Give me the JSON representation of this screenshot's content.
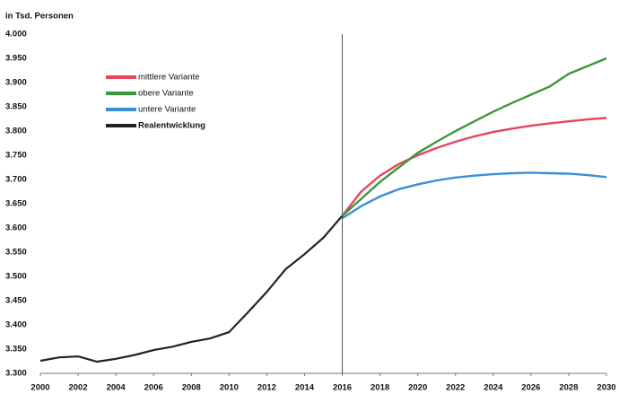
{
  "chart_data": {
    "type": "line",
    "y_label": "in Tsd. Personen",
    "x": [
      2000,
      2001,
      2002,
      2003,
      2004,
      2005,
      2006,
      2007,
      2008,
      2009,
      2010,
      2011,
      2012,
      2013,
      2014,
      2015,
      2016,
      2017,
      2018,
      2019,
      2020,
      2021,
      2022,
      2023,
      2024,
      2025,
      2026,
      2027,
      2028,
      2029,
      2030
    ],
    "series": [
      {
        "name": "mittlere Variante",
        "color": "#e8455e",
        "values": [
          null,
          null,
          null,
          null,
          null,
          null,
          null,
          null,
          null,
          null,
          null,
          null,
          null,
          null,
          null,
          null,
          3625,
          3675,
          3708,
          3732,
          3750,
          3765,
          3778,
          3789,
          3798,
          3805,
          3811,
          3816,
          3820,
          3824,
          3827
        ]
      },
      {
        "name": "obere Variante",
        "color": "#3a9a3a",
        "values": [
          null,
          null,
          null,
          null,
          null,
          null,
          null,
          null,
          null,
          null,
          null,
          null,
          null,
          null,
          null,
          null,
          3625,
          3660,
          3695,
          3725,
          3755,
          3778,
          3800,
          3820,
          3840,
          3858,
          3875,
          3892,
          3918,
          3934,
          3950
        ]
      },
      {
        "name": "untere Variante",
        "color": "#3a8fd8",
        "values": [
          null,
          null,
          null,
          null,
          null,
          null,
          null,
          null,
          null,
          null,
          null,
          null,
          null,
          null,
          null,
          null,
          3620,
          3645,
          3665,
          3680,
          3690,
          3698,
          3704,
          3708,
          3711,
          3713,
          3714,
          3713,
          3712,
          3709,
          3705
        ]
      },
      {
        "name": "Realentwicklung",
        "color": "#222222",
        "values": [
          3326,
          3333,
          3335,
          3324,
          3330,
          3338,
          3348,
          3355,
          3365,
          3372,
          3385,
          3426,
          3468,
          3515,
          3546,
          3580,
          3625,
          null,
          null,
          null,
          null,
          null,
          null,
          null,
          null,
          null,
          null,
          null,
          null,
          null,
          null
        ]
      }
    ],
    "xlim": [
      2000,
      2030
    ],
    "xticks": [
      2000,
      2002,
      2004,
      2006,
      2008,
      2010,
      2012,
      2014,
      2016,
      2018,
      2020,
      2022,
      2024,
      2026,
      2028,
      2030
    ],
    "ylim": [
      3300,
      4000
    ],
    "yticks": [
      {
        "value": 3300,
        "label": "3.300"
      },
      {
        "value": 3350,
        "label": "3.350"
      },
      {
        "value": 3400,
        "label": "3.400"
      },
      {
        "value": 3450,
        "label": "3.450"
      },
      {
        "value": 3500,
        "label": "3.500"
      },
      {
        "value": 3550,
        "label": "3.550"
      },
      {
        "value": 3600,
        "label": "3.600"
      },
      {
        "value": 3650,
        "label": "3.650"
      },
      {
        "value": 3700,
        "label": "3.700"
      },
      {
        "value": 3750,
        "label": "3.750"
      },
      {
        "value": 3800,
        "label": "3.800"
      },
      {
        "value": 3850,
        "label": "3.850"
      },
      {
        "value": 3900,
        "label": "3.900"
      },
      {
        "value": 3950,
        "label": "3.950"
      },
      {
        "value": 4000,
        "label": "4.000"
      }
    ],
    "vline": 2016,
    "grid": false,
    "legend": "upper left"
  }
}
